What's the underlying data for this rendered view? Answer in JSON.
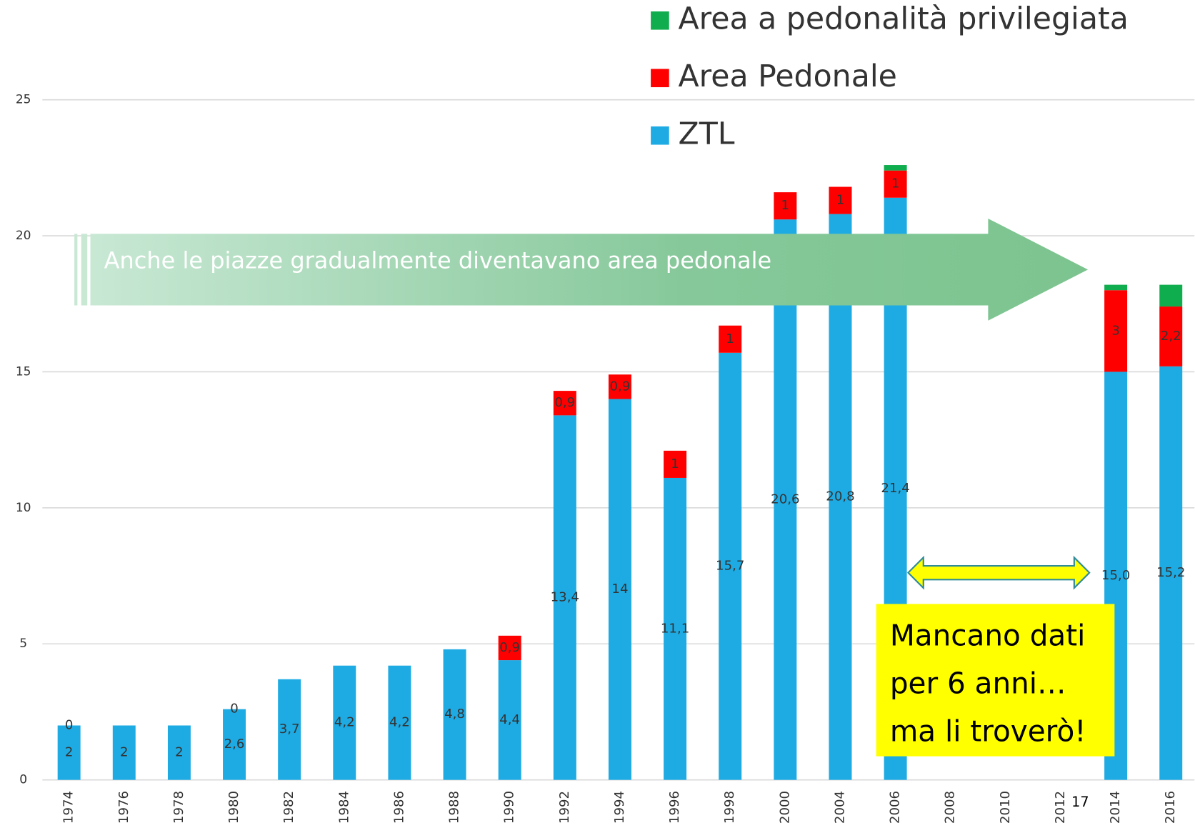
{
  "chart_data": {
    "type": "bar",
    "stacked": true,
    "categories": [
      "1974",
      "1976",
      "1978",
      "1980",
      "1982",
      "1984",
      "1986",
      "1988",
      "1990",
      "1992",
      "1994",
      "1996",
      "1998",
      "2000",
      "2004",
      "2006",
      "2008",
      "2010",
      "2012",
      "2014",
      "2016"
    ],
    "series": [
      {
        "name": "ZTL",
        "color": "#1eabe3",
        "values": [
          2,
          2,
          2,
          2.6,
          3.7,
          4.2,
          4.2,
          4.8,
          4.4,
          13.4,
          14,
          11.1,
          15.7,
          20.6,
          20.8,
          21.4,
          null,
          null,
          null,
          15.0,
          15.2
        ],
        "value_labels": [
          "2",
          "2",
          "2",
          "2,6",
          "3,7",
          "4,2",
          "4,2",
          "4,8",
          "4,4",
          "13,4",
          "14",
          "11,1",
          "15,7",
          "20,6",
          "20,8",
          "21,4",
          null,
          null,
          null,
          "15,0",
          "15,2"
        ]
      },
      {
        "name": "Area Pedonale",
        "color": "#ff0000",
        "values": [
          0,
          null,
          null,
          0,
          null,
          null,
          null,
          null,
          0.9,
          0.9,
          0.9,
          1,
          1,
          1,
          1,
          1,
          null,
          null,
          null,
          3,
          2.2
        ],
        "value_labels": [
          "0",
          null,
          null,
          "0",
          null,
          null,
          null,
          null,
          "0,9",
          "0,9",
          "0,9",
          "1",
          "1",
          "1",
          "1",
          "1",
          null,
          null,
          null,
          "3",
          "2,2"
        ]
      },
      {
        "name": "Area a pedonalità privilegiata",
        "color": "#10ad4f",
        "values": [
          null,
          null,
          null,
          null,
          null,
          null,
          null,
          null,
          null,
          null,
          null,
          null,
          null,
          null,
          null,
          0.2,
          null,
          null,
          null,
          0.2,
          0.8
        ]
      }
    ],
    "ylim": [
      0,
      25
    ],
    "yticks": [
      0,
      5,
      10,
      15,
      20,
      25
    ],
    "grid": true,
    "legend": "top-right",
    "annotations": {
      "arrow_text": "Anche  le piazze gradualmente diventavano area pedonale",
      "note_lines": [
        "Mancano dati",
        "per 6 anni…",
        "ma li troverò!"
      ],
      "page_number": "17"
    }
  }
}
